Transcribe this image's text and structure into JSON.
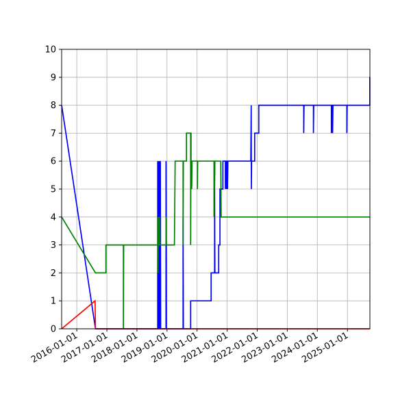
{
  "chart_data": {
    "type": "line",
    "title": "",
    "xlabel": "",
    "ylabel": "",
    "x_axis": "date",
    "xlim": [
      "2015-07-01",
      "2025-10-01"
    ],
    "ylim": [
      0,
      10
    ],
    "grid": true,
    "legend": "none",
    "y_ticks": [
      0,
      1,
      2,
      3,
      4,
      5,
      6,
      7,
      8,
      9,
      10
    ],
    "x_ticks": [
      "2016-01-01",
      "2017-01-01",
      "2018-01-01",
      "2019-01-01",
      "2020-01-01",
      "2021-01-01",
      "2022-01-01",
      "2023-01-01",
      "2024-01-01",
      "2025-01-01"
    ],
    "series": [
      {
        "color": "#0000ff",
        "points": [
          [
            "2015-07-01",
            8
          ],
          [
            "2016-08-15",
            0
          ],
          [
            "2018-09-10",
            0
          ],
          [
            "2018-09-10",
            6
          ],
          [
            "2018-09-14",
            0
          ],
          [
            "2018-09-18",
            6
          ],
          [
            "2018-09-22",
            0
          ],
          [
            "2018-09-26",
            6
          ],
          [
            "2018-09-30",
            0
          ],
          [
            "2018-10-04",
            6
          ],
          [
            "2018-10-08",
            0
          ],
          [
            "2018-10-12",
            6
          ],
          [
            "2018-10-16",
            0
          ],
          [
            "2018-12-20",
            0
          ],
          [
            "2018-12-20",
            6
          ],
          [
            "2018-12-24",
            0
          ],
          [
            "2019-07-15",
            0
          ],
          [
            "2019-07-15",
            4
          ],
          [
            "2019-07-19",
            0
          ],
          [
            "2019-10-15",
            0
          ],
          [
            "2019-10-15",
            1
          ],
          [
            "2020-06-20",
            1
          ],
          [
            "2020-06-20",
            2
          ],
          [
            "2020-08-01",
            2
          ],
          [
            "2020-08-01",
            5
          ],
          [
            "2020-08-05",
            2
          ],
          [
            "2020-09-20",
            2
          ],
          [
            "2020-09-20",
            3
          ],
          [
            "2020-10-05",
            3
          ],
          [
            "2020-10-05",
            5
          ],
          [
            "2020-11-10",
            5
          ],
          [
            "2020-11-10",
            6
          ],
          [
            "2020-12-10",
            6
          ],
          [
            "2020-12-10",
            5
          ],
          [
            "2020-12-15",
            6
          ],
          [
            "2020-12-25",
            6
          ],
          [
            "2020-12-25",
            5
          ],
          [
            "2020-12-30",
            6
          ],
          [
            "2021-01-05",
            6
          ],
          [
            "2021-01-05",
            5
          ],
          [
            "2021-01-10",
            6
          ],
          [
            "2021-10-15",
            6
          ],
          [
            "2021-10-20",
            8
          ],
          [
            "2021-10-22",
            5
          ],
          [
            "2021-10-25",
            6
          ],
          [
            "2021-12-01",
            6
          ],
          [
            "2021-12-01",
            7
          ],
          [
            "2022-01-20",
            7
          ],
          [
            "2022-01-20",
            8
          ],
          [
            "2023-07-20",
            8
          ],
          [
            "2023-07-20",
            7
          ],
          [
            "2023-07-24",
            8
          ],
          [
            "2023-11-15",
            8
          ],
          [
            "2023-11-15",
            7
          ],
          [
            "2023-11-19",
            8
          ],
          [
            "2024-06-20",
            8
          ],
          [
            "2024-06-20",
            7
          ],
          [
            "2024-06-24",
            8
          ],
          [
            "2024-07-05",
            8
          ],
          [
            "2024-07-05",
            7
          ],
          [
            "2024-07-09",
            8
          ],
          [
            "2024-12-25",
            8
          ],
          [
            "2024-12-25",
            7
          ],
          [
            "2024-12-29",
            8
          ],
          [
            "2025-09-30",
            8
          ],
          [
            "2025-09-30",
            9
          ],
          [
            "2025-10-01",
            9
          ]
        ]
      },
      {
        "color": "#008000",
        "points": [
          [
            "2015-07-01",
            4
          ],
          [
            "2016-08-15",
            2
          ],
          [
            "2016-12-20",
            2
          ],
          [
            "2016-12-20",
            3
          ],
          [
            "2016-12-24",
            3
          ],
          [
            "2017-07-20",
            3
          ],
          [
            "2017-07-20",
            0
          ],
          [
            "2017-07-24",
            3
          ],
          [
            "2018-09-10",
            3
          ],
          [
            "2018-09-10",
            4
          ],
          [
            "2018-09-14",
            2
          ],
          [
            "2018-09-18",
            4
          ],
          [
            "2018-09-22",
            3
          ],
          [
            "2018-09-26",
            4
          ],
          [
            "2018-09-30",
            3
          ],
          [
            "2018-10-04",
            4
          ],
          [
            "2018-10-08",
            3
          ],
          [
            "2018-12-20",
            3
          ],
          [
            "2018-12-20",
            4
          ],
          [
            "2018-12-24",
            3
          ],
          [
            "2019-04-01",
            3
          ],
          [
            "2019-04-10",
            6
          ],
          [
            "2019-07-15",
            6
          ],
          [
            "2019-07-15",
            3
          ],
          [
            "2019-07-19",
            6
          ],
          [
            "2019-08-25",
            6
          ],
          [
            "2019-08-25",
            7
          ],
          [
            "2019-10-15",
            7
          ],
          [
            "2019-10-15",
            3
          ],
          [
            "2019-10-19",
            7
          ],
          [
            "2019-10-20",
            7
          ],
          [
            "2019-10-20",
            6
          ],
          [
            "2019-10-28",
            6
          ],
          [
            "2019-10-28",
            5
          ],
          [
            "2019-11-01",
            6
          ],
          [
            "2020-01-05",
            6
          ],
          [
            "2020-01-05",
            5
          ],
          [
            "2020-01-09",
            6
          ],
          [
            "2020-07-25",
            6
          ],
          [
            "2020-07-25",
            4
          ],
          [
            "2020-07-29",
            6
          ],
          [
            "2020-08-01",
            6
          ],
          [
            "2020-08-01",
            5
          ],
          [
            "2020-08-05",
            6
          ],
          [
            "2020-10-15",
            6
          ],
          [
            "2020-10-20",
            4
          ],
          [
            "2025-10-01",
            4
          ]
        ]
      },
      {
        "color": "#ff0000",
        "points": [
          [
            "2015-07-01",
            0
          ],
          [
            "2016-08-10",
            1
          ],
          [
            "2016-08-15",
            0
          ],
          [
            "2025-10-01",
            0
          ]
        ]
      }
    ]
  }
}
